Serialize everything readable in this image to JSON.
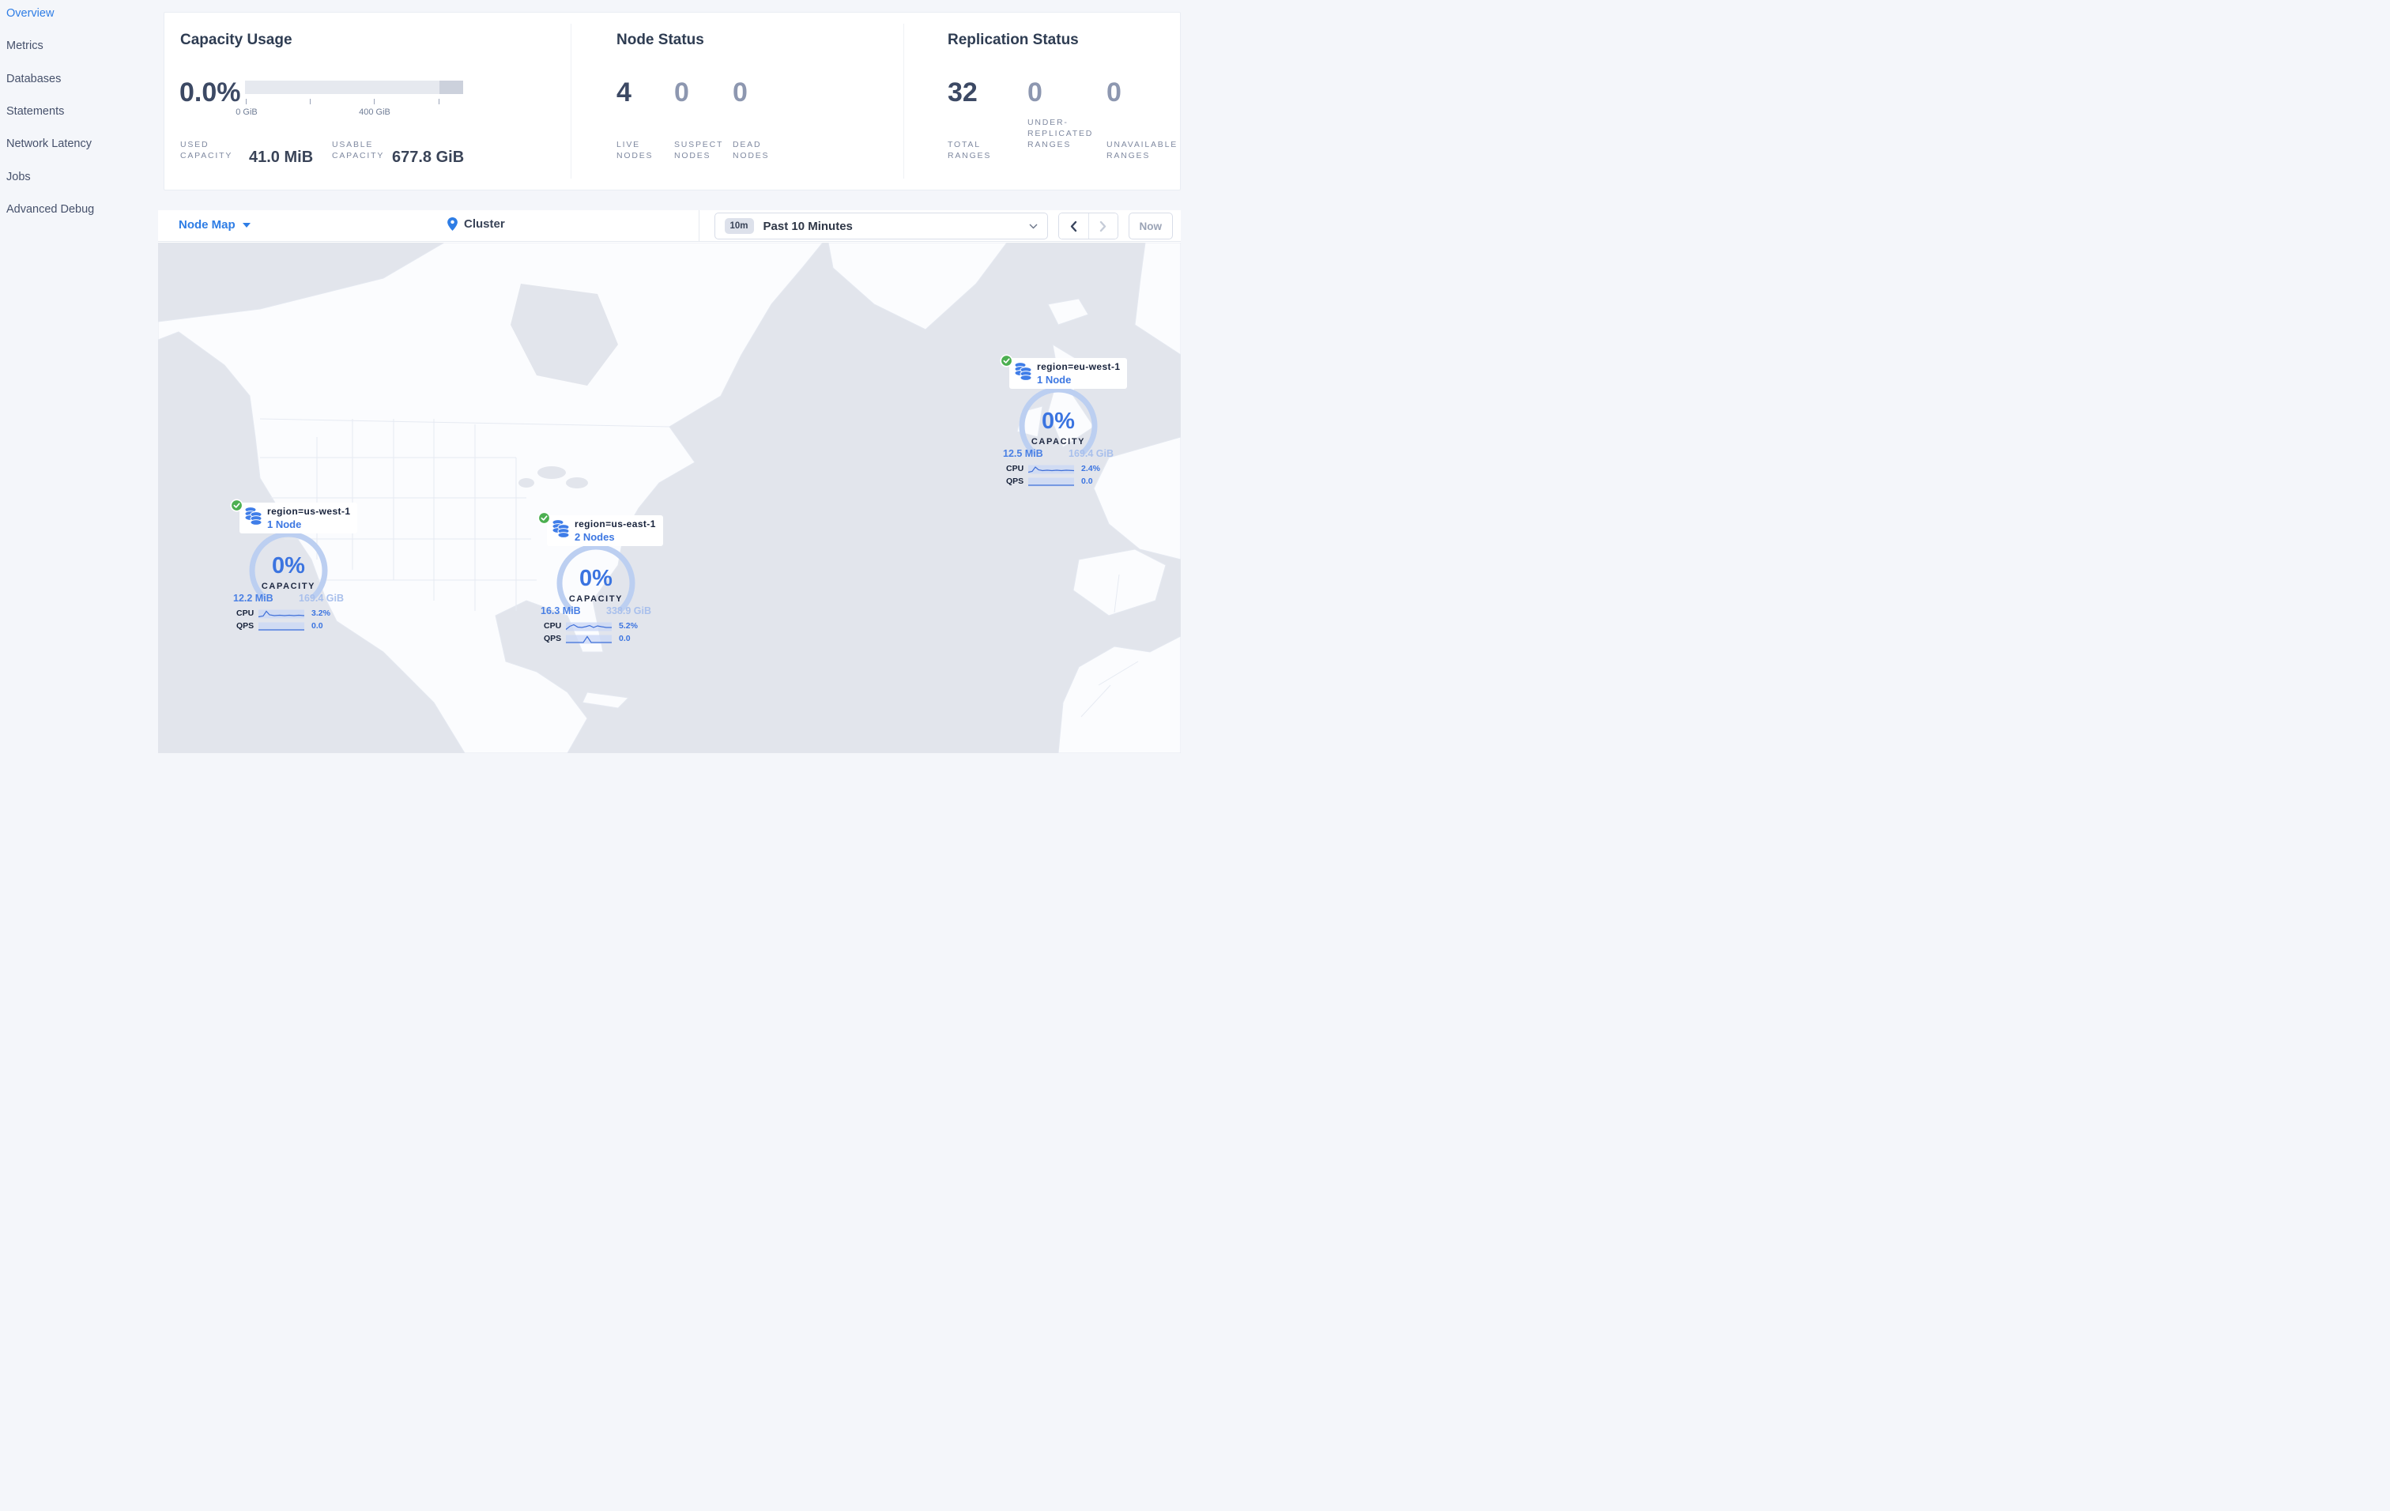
{
  "sidebar": {
    "items": [
      {
        "label": "Overview",
        "active": true
      },
      {
        "label": "Metrics",
        "active": false
      },
      {
        "label": "Databases",
        "active": false
      },
      {
        "label": "Statements",
        "active": false
      },
      {
        "label": "Network Latency",
        "active": false
      },
      {
        "label": "Jobs",
        "active": false
      },
      {
        "label": "Advanced Debug",
        "active": false
      }
    ]
  },
  "panels": {
    "capacity": {
      "title": "Capacity Usage",
      "percent": "0.0%",
      "bar": {
        "light_pct": 89.3,
        "tick0_label": "0 GiB",
        "tick2_label": "400 GiB"
      },
      "used_label": "USED\nCAPACITY",
      "used_value": "41.0 MiB",
      "usable_label": "USABLE\nCAPACITY",
      "usable_value": "677.8 GiB"
    },
    "nodes": {
      "title": "Node Status",
      "stats": [
        {
          "value": "4",
          "label": "LIVE\nNODES",
          "muted": false
        },
        {
          "value": "0",
          "label": "SUSPECT\nNODES",
          "muted": true
        },
        {
          "value": "0",
          "label": "DEAD\nNODES",
          "muted": true
        }
      ]
    },
    "replication": {
      "title": "Replication Status",
      "stats": [
        {
          "value": "32",
          "label": "TOTAL\nRANGES",
          "muted": false
        },
        {
          "value": "0",
          "label": "UNDER-\nREPLICATED\nRANGES",
          "muted": true
        },
        {
          "value": "0",
          "label": "UNAVAILABLE\nRANGES",
          "muted": true
        }
      ]
    }
  },
  "toolbar": {
    "view_selector": "Node Map",
    "breadcrumb": "Cluster",
    "time_badge": "10m",
    "time_range": "Past 10 Minutes",
    "prev_label": "previous-time-window",
    "next_label": "next-time-window",
    "now_label": "Now"
  },
  "map": {
    "regions": [
      {
        "name": "region=us-west-1",
        "nodes": "1 Node",
        "percent": "0%",
        "capacity_label": "CAPACITY",
        "used": "12.2 MiB",
        "usable": "169.4 GiB",
        "cpu_label": "CPU",
        "cpu": "3.2%",
        "qps_label": "QPS",
        "qps": "0.0"
      },
      {
        "name": "region=us-east-1",
        "nodes": "2 Nodes",
        "percent": "0%",
        "capacity_label": "CAPACITY",
        "used": "16.3 MiB",
        "usable": "338.9 GiB",
        "cpu_label": "CPU",
        "cpu": "5.2%",
        "qps_label": "QPS",
        "qps": "0.0"
      },
      {
        "name": "region=eu-west-1",
        "nodes": "1 Node",
        "percent": "0%",
        "capacity_label": "CAPACITY",
        "used": "12.5 MiB",
        "usable": "169.4 GiB",
        "cpu_label": "CPU",
        "cpu": "2.4%",
        "qps_label": "QPS",
        "qps": "0.0"
      }
    ]
  },
  "colors": {
    "accent_blue": "#2e7de5",
    "gauge_blue": "#3b74e0",
    "arc_blue": "#bccff1",
    "ok_green": "#4caf50",
    "ocean": "#e2e5ec",
    "land": "#fbfcfe",
    "dark_text": "#3c4964",
    "muted_text": "#8d97b0"
  }
}
